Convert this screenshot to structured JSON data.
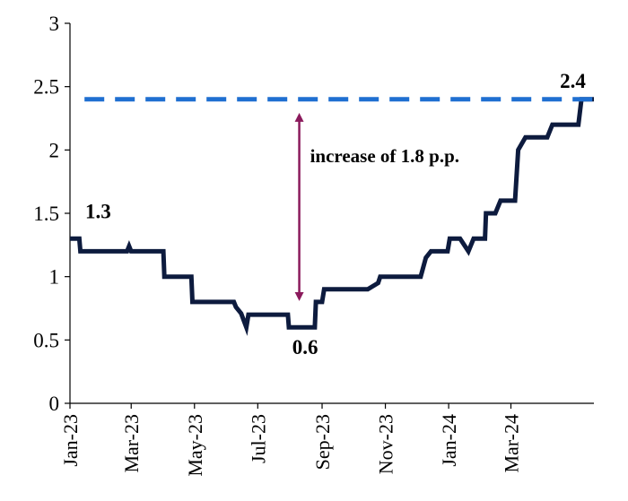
{
  "chart_data": {
    "type": "line",
    "title": "",
    "xlabel": "",
    "ylabel": "",
    "ylim": [
      0,
      3
    ],
    "yticks": [
      "0",
      "0.5",
      "1",
      "1.5",
      "2",
      "2.5",
      "3"
    ],
    "xticks": [
      "Jan-23",
      "Mar-23",
      "May-23",
      "Jul-23",
      "Sep-23",
      "Nov-23",
      "Jan-24",
      "Mar-24"
    ],
    "grid": false,
    "legend": "none",
    "series": [
      {
        "style": "solid",
        "color": "#0d1b3e",
        "points": [
          [
            "2023-01-01",
            1.3
          ],
          [
            "2023-01-10",
            1.3
          ],
          [
            "2023-01-11",
            1.2
          ],
          [
            "2023-02-25",
            1.2
          ],
          [
            "2023-02-27",
            1.24
          ],
          [
            "2023-03-01",
            1.2
          ],
          [
            "2023-04-01",
            1.2
          ],
          [
            "2023-04-02",
            1.0
          ],
          [
            "2023-04-28",
            1.0
          ],
          [
            "2023-04-29",
            0.8
          ],
          [
            "2023-06-08",
            0.8
          ],
          [
            "2023-06-10",
            0.76
          ],
          [
            "2023-06-15",
            0.71
          ],
          [
            "2023-06-20",
            0.6
          ],
          [
            "2023-06-22",
            0.7
          ],
          [
            "2023-07-30",
            0.7
          ],
          [
            "2023-07-31",
            0.6
          ],
          [
            "2023-08-25",
            0.6
          ],
          [
            "2023-08-26",
            0.8
          ],
          [
            "2023-09-01",
            0.8
          ],
          [
            "2023-09-03",
            0.9
          ],
          [
            "2023-10-15",
            0.9
          ],
          [
            "2023-10-25",
            0.95
          ],
          [
            "2023-10-27",
            1.0
          ],
          [
            "2023-12-05",
            1.0
          ],
          [
            "2023-12-10",
            1.15
          ],
          [
            "2023-12-15",
            1.2
          ],
          [
            "2023-12-31",
            1.2
          ],
          [
            "2024-01-02",
            1.3
          ],
          [
            "2024-01-12",
            1.3
          ],
          [
            "2024-01-20",
            1.2
          ],
          [
            "2024-01-25",
            1.3
          ],
          [
            "2024-02-05",
            1.3
          ],
          [
            "2024-02-06",
            1.5
          ],
          [
            "2024-02-15",
            1.5
          ],
          [
            "2024-02-20",
            1.6
          ],
          [
            "2024-03-05",
            1.6
          ],
          [
            "2024-03-08",
            2.0
          ],
          [
            "2024-03-15",
            2.1
          ],
          [
            "2024-04-05",
            2.1
          ],
          [
            "2024-04-10",
            2.2
          ],
          [
            "2024-05-05",
            2.2
          ],
          [
            "2024-05-08",
            2.4
          ],
          [
            "2024-05-20",
            2.4
          ]
        ]
      },
      {
        "style": "dashed",
        "color": "#1f6fd1",
        "points": [
          [
            "2023-01-15",
            2.4
          ],
          [
            "2024-05-20",
            2.4
          ]
        ]
      }
    ],
    "data_labels": [
      {
        "text": "1.3",
        "x": "2023-01-01",
        "y": 1.3
      },
      {
        "text": "0.6",
        "x": "2023-08-05",
        "y": 0.6
      },
      {
        "text": "2.4",
        "x": "2024-05-08",
        "y": 2.4
      }
    ],
    "annotation": {
      "text": "increase of 1.8 p.p.",
      "arrow_x": "2023-08-10",
      "arrow_from": 0.8,
      "arrow_to": 2.3,
      "color": "#8b1a5c"
    }
  }
}
